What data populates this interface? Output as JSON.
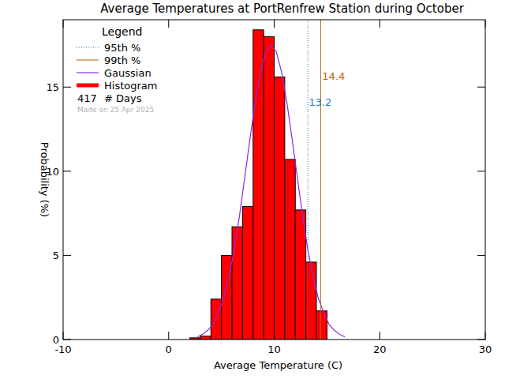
{
  "chart_data": {
    "type": "histogram",
    "title": "Average Temperatures at PortRenfrew Station during October",
    "x_label": "Average Temperature (C)",
    "y_label": "Probability (%)",
    "xlim": [
      -10,
      30
    ],
    "xticks": [
      -10,
      0,
      10,
      20,
      30
    ],
    "ylim": [
      0,
      19
    ],
    "yticks": [
      0,
      5,
      10,
      15
    ],
    "legend": "top-left",
    "legend_title": "Legend",
    "bins": [
      2,
      3,
      4,
      5,
      6,
      7,
      8,
      9,
      10,
      11,
      12,
      13,
      14,
      15
    ],
    "series": [
      {
        "name": "Histogram",
        "type": "bar",
        "color": "#ff0000",
        "values": [
          0.1,
          0.2,
          2.4,
          5.0,
          6.7,
          7.9,
          18.4,
          18.0,
          15.6,
          10.7,
          7.7,
          4.6,
          1.7
        ]
      },
      {
        "name": "Gaussian",
        "type": "line",
        "color": "#8a2be2",
        "x": [
          2.7,
          3.2,
          3.7,
          4.2,
          4.7,
          5.2,
          5.7,
          6.2,
          6.7,
          7.2,
          7.7,
          8.2,
          8.7,
          9.2,
          9.7,
          10.2,
          10.7,
          11.2,
          11.7,
          12.2,
          12.7,
          13.2,
          13.7,
          14.2,
          14.7,
          15.2,
          15.7,
          16.2,
          16.7
        ],
        "values": [
          0.15,
          0.3,
          0.55,
          0.9,
          1.6,
          2.4,
          3.7,
          5.3,
          7.3,
          9.6,
          11.9,
          14.1,
          15.9,
          17.1,
          17.5,
          17.1,
          15.9,
          14.1,
          11.9,
          9.6,
          7.3,
          5.3,
          3.7,
          2.4,
          1.6,
          0.9,
          0.55,
          0.3,
          0.15
        ]
      }
    ],
    "reference_lines": [
      {
        "name": "95th %",
        "value": 13.2,
        "color": "#1f7fc8",
        "line_style": "dotted"
      },
      {
        "name": "99th %",
        "value": 14.4,
        "color": "#b8600a",
        "line_style": "solid"
      }
    ],
    "days": 417,
    "days_label": "# Days",
    "note": "Made on 25 Apr 2025"
  }
}
